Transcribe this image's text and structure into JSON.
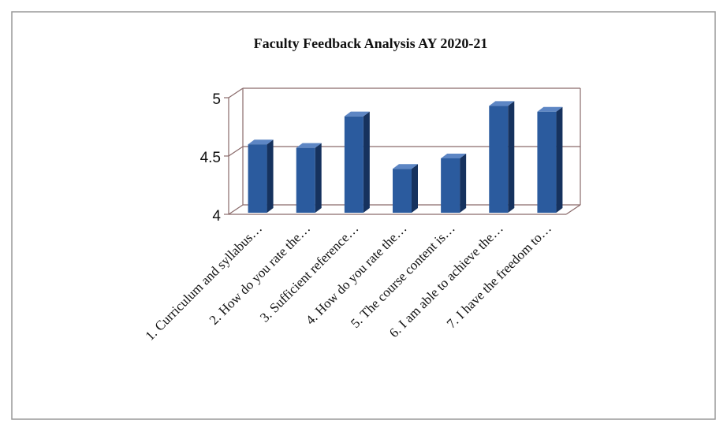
{
  "chart_data": {
    "type": "bar3d",
    "title": "Faculty Feedback Analysis AY 2020-21",
    "categories": [
      "1.  Curriculum and syllabus…",
      "2.  How do you rate the…",
      "3.  Sufficient reference…",
      "4.  How do you rate the…",
      "5.  The course content is…",
      "6.  I am able to achieve the…",
      "7.  I have the freedom to…"
    ],
    "values": [
      4.6,
      4.57,
      4.84,
      4.39,
      4.48,
      4.93,
      4.88
    ],
    "color": "#2b5b9e",
    "ylim": [
      4,
      5
    ],
    "yticks": [
      4,
      4.5,
      5
    ],
    "grid": true
  }
}
